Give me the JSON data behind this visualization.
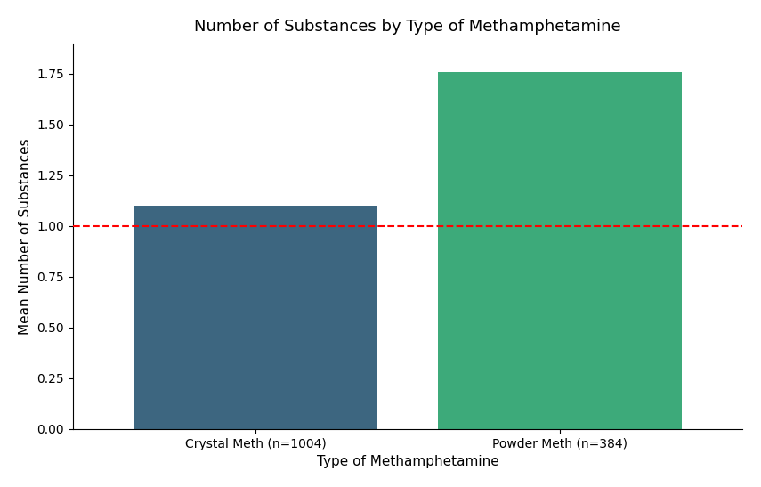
{
  "title": "Number of Substances by Type of Methamphetamine",
  "xlabel": "Type of Methamphetamine",
  "ylabel": "Mean Number of Substances",
  "categories": [
    "Crystal Meth (n=1004)",
    "Powder Meth (n=384)"
  ],
  "values": [
    1.1,
    1.76
  ],
  "bar_colors": [
    "#3d6680",
    "#3daa7a"
  ],
  "hline_y": 1.0,
  "hline_color": "#ff0000",
  "hline_style": "--",
  "ylim": [
    0,
    1.9
  ],
  "yticks": [
    0.0,
    0.25,
    0.5,
    0.75,
    1.0,
    1.25,
    1.5,
    1.75
  ],
  "background_color": "#ffffff",
  "title_fontsize": 13,
  "label_fontsize": 11,
  "tick_fontsize": 10,
  "bar_width": 0.8
}
